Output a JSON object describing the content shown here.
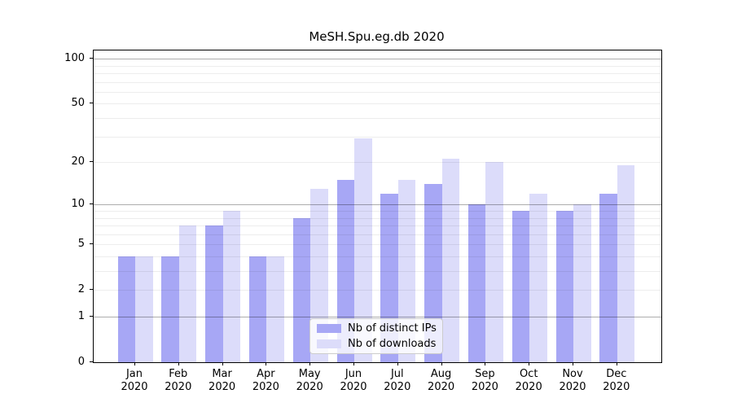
{
  "title": "MeSH.Spu.eg.db 2020",
  "chart_data": {
    "type": "bar",
    "title": "MeSH.Spu.eg.db 2020",
    "categories": [
      "Jan",
      "Feb",
      "Mar",
      "Apr",
      "May",
      "Jun",
      "Jul",
      "Aug",
      "Sep",
      "Oct",
      "Nov",
      "Dec"
    ],
    "year": "2020",
    "series": [
      {
        "name": "Nb of distinct IPs",
        "color": "#a7a7f5",
        "values": [
          4,
          4,
          7,
          4,
          8,
          15,
          12,
          14,
          10,
          9,
          9,
          12
        ]
      },
      {
        "name": "Nb of downloads",
        "color": "#dcdcfa",
        "values": [
          4,
          7,
          9,
          4,
          13,
          29,
          15,
          21,
          20,
          12,
          10,
          19
        ]
      }
    ],
    "yscale": "log10(1+v)",
    "ylim": [
      0,
      114
    ],
    "yticks": [
      0,
      1,
      2,
      5,
      10,
      20,
      50,
      100
    ],
    "grid": {
      "on": true,
      "major": [
        1,
        10,
        100
      ],
      "minor": [
        2,
        3,
        4,
        5,
        6,
        7,
        8,
        9,
        20,
        30,
        40,
        50,
        60,
        70,
        80,
        90
      ]
    },
    "legend_position": "lower center"
  }
}
